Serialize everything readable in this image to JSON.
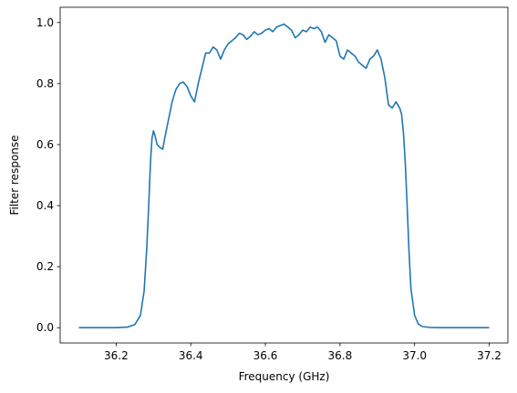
{
  "chart_data": {
    "type": "line",
    "title": "",
    "xlabel": "Frequency (GHz)",
    "ylabel": "Filter response",
    "xlim": [
      36.05,
      37.25
    ],
    "ylim": [
      -0.05,
      1.05
    ],
    "grid": false,
    "xticks": [
      36.2,
      36.4,
      36.6,
      36.8,
      37.0,
      37.2
    ],
    "xtick_labels": [
      "36.2",
      "36.4",
      "36.6",
      "36.8",
      "37.0",
      "37.2"
    ],
    "yticks": [
      0.0,
      0.2,
      0.4,
      0.6,
      0.8,
      1.0
    ],
    "ytick_labels": [
      "0.0",
      "0.2",
      "0.4",
      "0.6",
      "0.8",
      "1.0"
    ],
    "series": [
      {
        "color": "#1f77b4",
        "x": [
          36.1,
          36.15,
          36.2,
          36.23,
          36.25,
          36.265,
          36.275,
          36.282,
          36.288,
          36.292,
          36.296,
          36.3,
          36.304,
          36.31,
          36.318,
          36.325,
          36.33,
          36.34,
          36.35,
          36.36,
          36.37,
          36.38,
          36.39,
          36.4,
          36.41,
          36.42,
          36.43,
          36.44,
          36.45,
          36.46,
          36.47,
          36.48,
          36.49,
          36.5,
          36.51,
          36.52,
          36.53,
          36.54,
          36.55,
          36.56,
          36.57,
          36.58,
          36.59,
          36.6,
          36.61,
          36.62,
          36.63,
          36.64,
          36.65,
          36.66,
          36.67,
          36.68,
          36.69,
          36.7,
          36.71,
          36.72,
          36.73,
          36.74,
          36.75,
          36.76,
          36.77,
          36.78,
          36.79,
          36.8,
          36.81,
          36.82,
          36.83,
          36.84,
          36.85,
          36.86,
          36.87,
          36.88,
          36.89,
          36.9,
          36.91,
          36.92,
          36.93,
          36.94,
          36.95,
          36.96,
          36.965,
          36.97,
          36.975,
          36.98,
          36.985,
          36.99,
          37.0,
          37.01,
          37.02,
          37.04,
          37.07,
          37.1,
          37.15,
          37.2
        ],
        "y": [
          0.0,
          0.0,
          0.0,
          0.002,
          0.01,
          0.04,
          0.12,
          0.26,
          0.42,
          0.54,
          0.62,
          0.645,
          0.63,
          0.6,
          0.59,
          0.585,
          0.62,
          0.68,
          0.74,
          0.78,
          0.8,
          0.805,
          0.79,
          0.76,
          0.74,
          0.8,
          0.85,
          0.9,
          0.9,
          0.92,
          0.91,
          0.88,
          0.91,
          0.93,
          0.94,
          0.95,
          0.965,
          0.96,
          0.945,
          0.955,
          0.97,
          0.96,
          0.965,
          0.975,
          0.98,
          0.97,
          0.985,
          0.99,
          0.995,
          0.985,
          0.975,
          0.95,
          0.96,
          0.975,
          0.97,
          0.985,
          0.98,
          0.985,
          0.97,
          0.935,
          0.96,
          0.95,
          0.94,
          0.89,
          0.88,
          0.91,
          0.9,
          0.89,
          0.87,
          0.86,
          0.85,
          0.88,
          0.89,
          0.91,
          0.88,
          0.82,
          0.73,
          0.72,
          0.74,
          0.72,
          0.7,
          0.64,
          0.54,
          0.4,
          0.25,
          0.13,
          0.04,
          0.012,
          0.004,
          0.001,
          0.0,
          0.0,
          0.0,
          0.0
        ]
      }
    ]
  }
}
